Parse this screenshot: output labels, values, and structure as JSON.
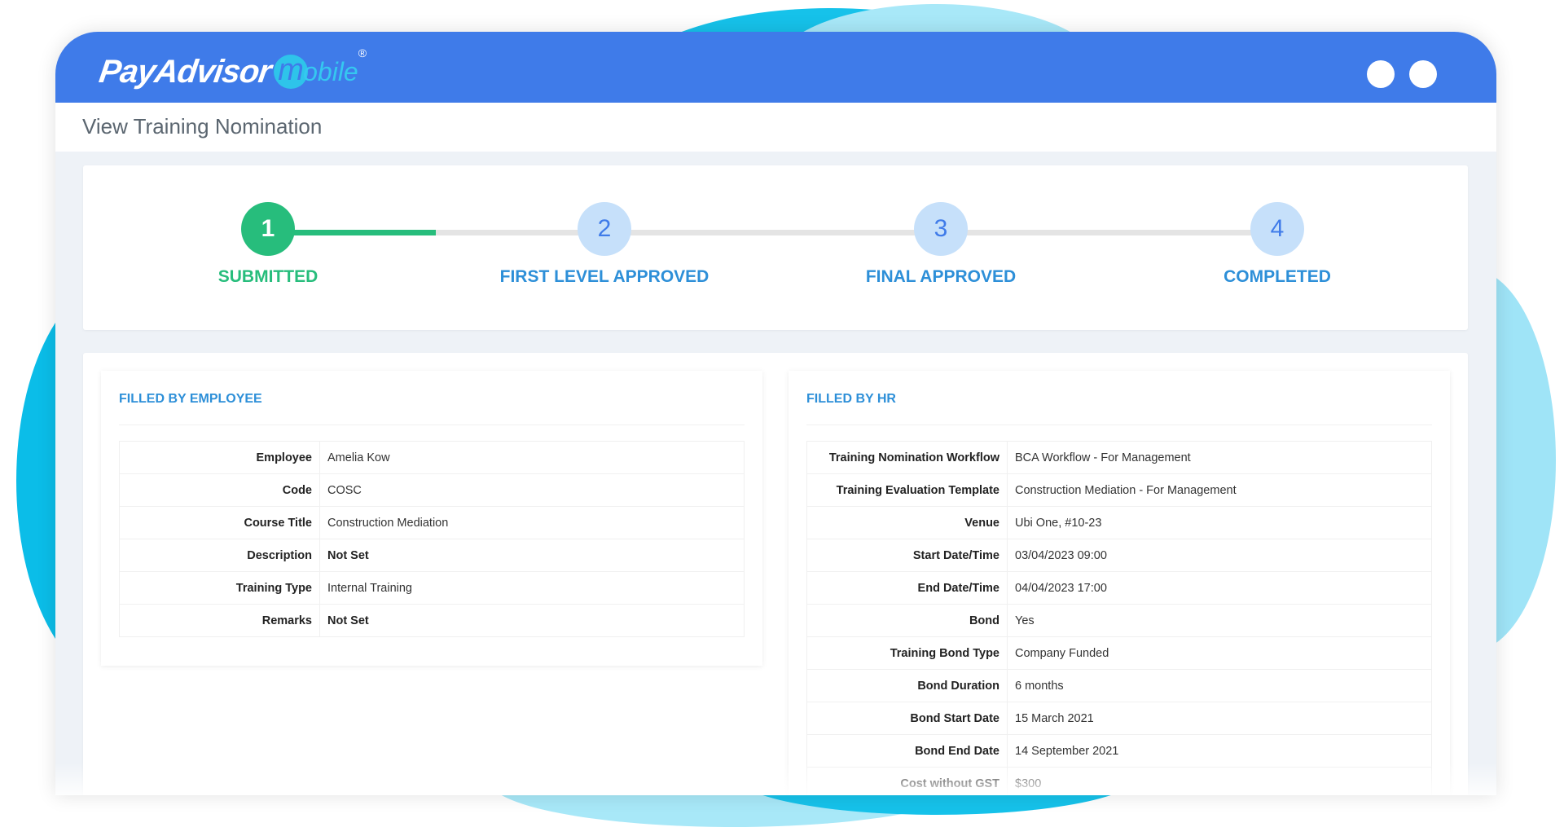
{
  "app": {
    "logo_text": "PayAdvisor mobile",
    "brand_color": "#3f7be9"
  },
  "page": {
    "title": "View Training Nomination"
  },
  "stepper": {
    "progress_color": "#27bd7c",
    "steps": [
      {
        "number": "1",
        "label": "SUBMITTED",
        "status": "done"
      },
      {
        "number": "2",
        "label": "FIRST LEVEL APPROVED",
        "status": "pending"
      },
      {
        "number": "3",
        "label": "FINAL APPROVED",
        "status": "pending"
      },
      {
        "number": "4",
        "label": "COMPLETED",
        "status": "pending"
      }
    ]
  },
  "employee": {
    "heading": "FILLED BY EMPLOYEE",
    "rows": [
      {
        "label": "Employee",
        "value": "Amelia Kow"
      },
      {
        "label": "Code",
        "value": "COSC"
      },
      {
        "label": "Course Title",
        "value": "Construction Mediation"
      },
      {
        "label": "Description",
        "value": "Not Set"
      },
      {
        "label": "Training Type",
        "value": "Internal Training"
      },
      {
        "label": "Remarks",
        "value": "Not Set"
      }
    ]
  },
  "hr": {
    "heading": "FILLED BY HR",
    "rows": [
      {
        "label": "Training Nomination Workflow",
        "value": "BCA Workflow - For Management"
      },
      {
        "label": "Training Evaluation Template",
        "value": "Construction Mediation - For Management"
      },
      {
        "label": "Venue",
        "value": "Ubi One, #10-23"
      },
      {
        "label": "Start Date/Time",
        "value": "03/04/2023 09:00"
      },
      {
        "label": "End Date/Time",
        "value": "04/04/2023 17:00"
      },
      {
        "label": "Bond",
        "value": "Yes"
      },
      {
        "label": "Training Bond Type",
        "value": "Company Funded"
      },
      {
        "label": "Bond Duration",
        "value": "6 months"
      },
      {
        "label": "Bond Start Date",
        "value": "15 March 2021"
      },
      {
        "label": "Bond End Date",
        "value": "14 September 2021"
      },
      {
        "label": "Cost without GST",
        "value": "$300"
      }
    ]
  }
}
